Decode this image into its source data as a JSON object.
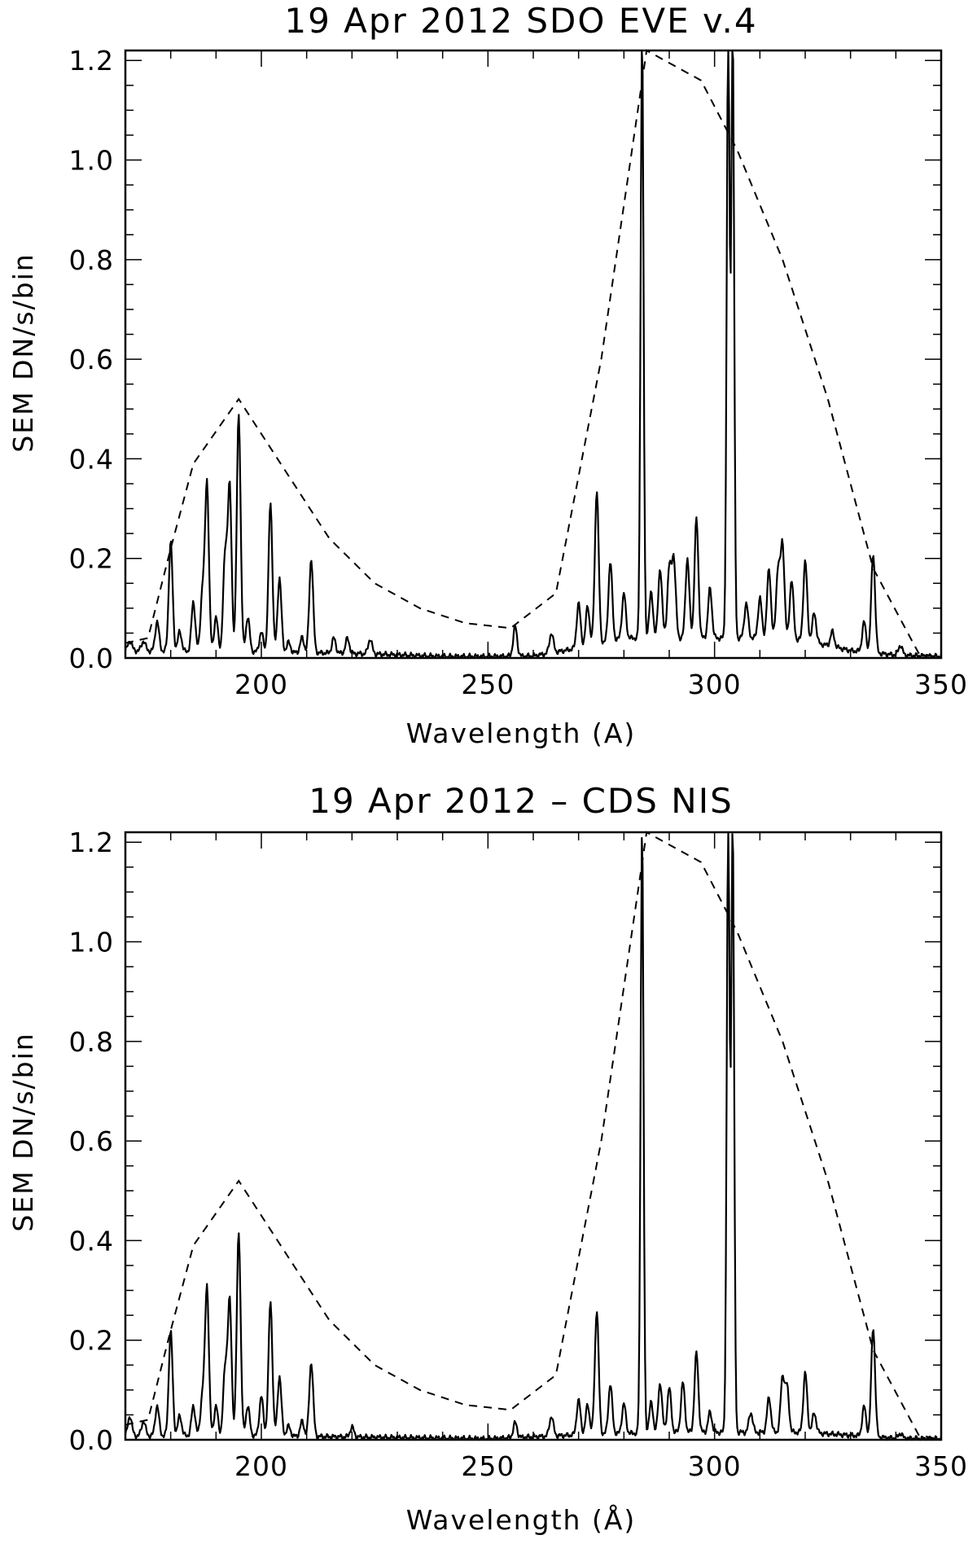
{
  "chart_data": [
    {
      "type": "line",
      "title": "19 Apr 2012 SDO EVE v.4",
      "xlabel": "Wavelength (A)",
      "ylabel": "SEM DN/s/bin",
      "xlim": [
        170,
        350
      ],
      "ylim": [
        0.0,
        1.22
      ],
      "xticks": [
        200,
        250,
        300,
        350
      ],
      "xtick_labels": [
        "200",
        "250",
        "300",
        "350"
      ],
      "yticks": [
        0.0,
        0.2,
        0.4,
        0.6,
        0.8,
        1.0,
        1.2
      ],
      "ytick_labels": [
        "0.0",
        "0.2",
        "0.4",
        "0.6",
        "0.8",
        "1.0",
        "1.2"
      ],
      "grid": false,
      "series": [
        {
          "style": "solid",
          "baseline": [
            [
              170,
              0.015
            ],
            [
              190,
              0.012
            ],
            [
              200,
              0.012
            ],
            [
              215,
              0.01
            ],
            [
              225,
              0.008
            ],
            [
              240,
              0.003
            ],
            [
              250,
              0.003
            ],
            [
              260,
              0.004
            ],
            [
              270,
              0.02
            ],
            [
              280,
              0.04
            ],
            [
              290,
              0.04
            ],
            [
              300,
              0.04
            ],
            [
              310,
              0.04
            ],
            [
              320,
              0.035
            ],
            [
              330,
              0.015
            ],
            [
              340,
              0.006
            ],
            [
              350,
              0.003
            ]
          ],
          "peaks": [
            [
              171,
              0.02
            ],
            [
              174,
              0.02
            ],
            [
              177,
              0.06
            ],
            [
              180,
              0.22
            ],
            [
              182,
              0.04
            ],
            [
              185,
              0.1
            ],
            [
              187,
              0.12
            ],
            [
              188,
              0.34
            ],
            [
              190,
              0.07
            ],
            [
              192,
              0.19
            ],
            [
              193,
              0.33
            ],
            [
              195,
              0.48
            ],
            [
              197,
              0.07
            ],
            [
              200,
              0.04
            ],
            [
              202,
              0.3
            ],
            [
              204,
              0.15
            ],
            [
              206,
              0.02
            ],
            [
              209,
              0.03
            ],
            [
              211,
              0.19
            ],
            [
              216,
              0.03
            ],
            [
              219,
              0.03
            ],
            [
              224,
              0.03
            ],
            [
              256,
              0.06
            ],
            [
              264,
              0.04
            ],
            [
              270,
              0.09
            ],
            [
              272,
              0.08
            ],
            [
              274,
              0.31
            ],
            [
              277,
              0.16
            ],
            [
              280,
              0.09
            ],
            [
              284,
              1.22
            ],
            [
              286,
              0.09
            ],
            [
              288,
              0.14
            ],
            [
              290,
              0.14
            ],
            [
              291,
              0.16
            ],
            [
              294,
              0.16
            ],
            [
              296,
              0.24
            ],
            [
              299,
              0.1
            ],
            [
              303,
              1.22
            ],
            [
              304,
              1.22
            ],
            [
              307,
              0.07
            ],
            [
              310,
              0.08
            ],
            [
              312,
              0.14
            ],
            [
              314,
              0.14
            ],
            [
              315,
              0.19
            ],
            [
              317,
              0.12
            ],
            [
              320,
              0.16
            ],
            [
              322,
              0.06
            ],
            [
              326,
              0.03
            ],
            [
              333,
              0.06
            ],
            [
              335,
              0.2
            ],
            [
              341,
              0.02
            ]
          ]
        },
        {
          "style": "dashed",
          "points": [
            [
              170,
              0.03
            ],
            [
              175,
              0.04
            ],
            [
              180,
              0.22
            ],
            [
              185,
              0.39
            ],
            [
              195,
              0.52
            ],
            [
              205,
              0.38
            ],
            [
              215,
              0.24
            ],
            [
              225,
              0.15
            ],
            [
              235,
              0.1
            ],
            [
              245,
              0.07
            ],
            [
              255,
              0.06
            ],
            [
              265,
              0.13
            ],
            [
              275,
              0.6
            ],
            [
              285,
              1.22
            ],
            [
              297,
              1.16
            ],
            [
              305,
              1.02
            ],
            [
              315,
              0.8
            ],
            [
              325,
              0.52
            ],
            [
              335,
              0.18
            ],
            [
              345,
              0.01
            ],
            [
              350,
              0.0
            ]
          ]
        }
      ]
    },
    {
      "type": "line",
      "title": "19 Apr 2012 – CDS NIS",
      "xlabel": "Wavelength (Å)",
      "ylabel": "SEM DN/s/bin",
      "xlim": [
        170,
        350
      ],
      "ylim": [
        0.0,
        1.22
      ],
      "xticks": [
        200,
        250,
        300,
        350
      ],
      "xtick_labels": [
        "200",
        "250",
        "300",
        "350"
      ],
      "yticks": [
        0.0,
        0.2,
        0.4,
        0.6,
        0.8,
        1.0,
        1.2
      ],
      "ytick_labels": [
        "0.0",
        "0.2",
        "0.4",
        "0.6",
        "0.8",
        "1.0",
        "1.2"
      ],
      "grid": false,
      "series": [
        {
          "style": "solid",
          "baseline": [
            [
              170,
              0.008
            ],
            [
              200,
              0.008
            ],
            [
              225,
              0.005
            ],
            [
              250,
              0.002
            ],
            [
              270,
              0.01
            ],
            [
              290,
              0.015
            ],
            [
              320,
              0.015
            ],
            [
              340,
              0.003
            ],
            [
              350,
              0.002
            ]
          ],
          "peaks": [
            [
              171,
              0.04
            ],
            [
              174,
              0.03
            ],
            [
              177,
              0.06
            ],
            [
              180,
              0.21
            ],
            [
              182,
              0.04
            ],
            [
              185,
              0.06
            ],
            [
              187,
              0.08
            ],
            [
              188,
              0.3
            ],
            [
              190,
              0.06
            ],
            [
              192,
              0.13
            ],
            [
              193,
              0.27
            ],
            [
              195,
              0.41
            ],
            [
              197,
              0.06
            ],
            [
              200,
              0.08
            ],
            [
              202,
              0.27
            ],
            [
              204,
              0.12
            ],
            [
              206,
              0.02
            ],
            [
              209,
              0.03
            ],
            [
              211,
              0.15
            ],
            [
              220,
              0.02
            ],
            [
              256,
              0.03
            ],
            [
              264,
              0.04
            ],
            [
              270,
              0.07
            ],
            [
              272,
              0.06
            ],
            [
              274,
              0.25
            ],
            [
              277,
              0.1
            ],
            [
              280,
              0.06
            ],
            [
              284,
              1.22
            ],
            [
              286,
              0.06
            ],
            [
              288,
              0.1
            ],
            [
              290,
              0.09
            ],
            [
              293,
              0.1
            ],
            [
              296,
              0.16
            ],
            [
              299,
              0.04
            ],
            [
              303,
              1.22
            ],
            [
              304,
              1.22
            ],
            [
              308,
              0.04
            ],
            [
              312,
              0.07
            ],
            [
              315,
              0.11
            ],
            [
              316,
              0.09
            ],
            [
              320,
              0.12
            ],
            [
              322,
              0.04
            ],
            [
              333,
              0.06
            ],
            [
              335,
              0.22
            ],
            [
              341,
              0.01
            ]
          ]
        },
        {
          "style": "dashed",
          "points": [
            [
              170,
              0.03
            ],
            [
              175,
              0.04
            ],
            [
              180,
              0.22
            ],
            [
              185,
              0.39
            ],
            [
              195,
              0.52
            ],
            [
              205,
              0.38
            ],
            [
              215,
              0.24
            ],
            [
              225,
              0.15
            ],
            [
              235,
              0.1
            ],
            [
              245,
              0.07
            ],
            [
              255,
              0.06
            ],
            [
              265,
              0.13
            ],
            [
              275,
              0.6
            ],
            [
              285,
              1.22
            ],
            [
              297,
              1.16
            ],
            [
              305,
              1.02
            ],
            [
              315,
              0.8
            ],
            [
              325,
              0.52
            ],
            [
              335,
              0.18
            ],
            [
              345,
              0.01
            ],
            [
              350,
              0.0
            ]
          ]
        }
      ]
    }
  ]
}
